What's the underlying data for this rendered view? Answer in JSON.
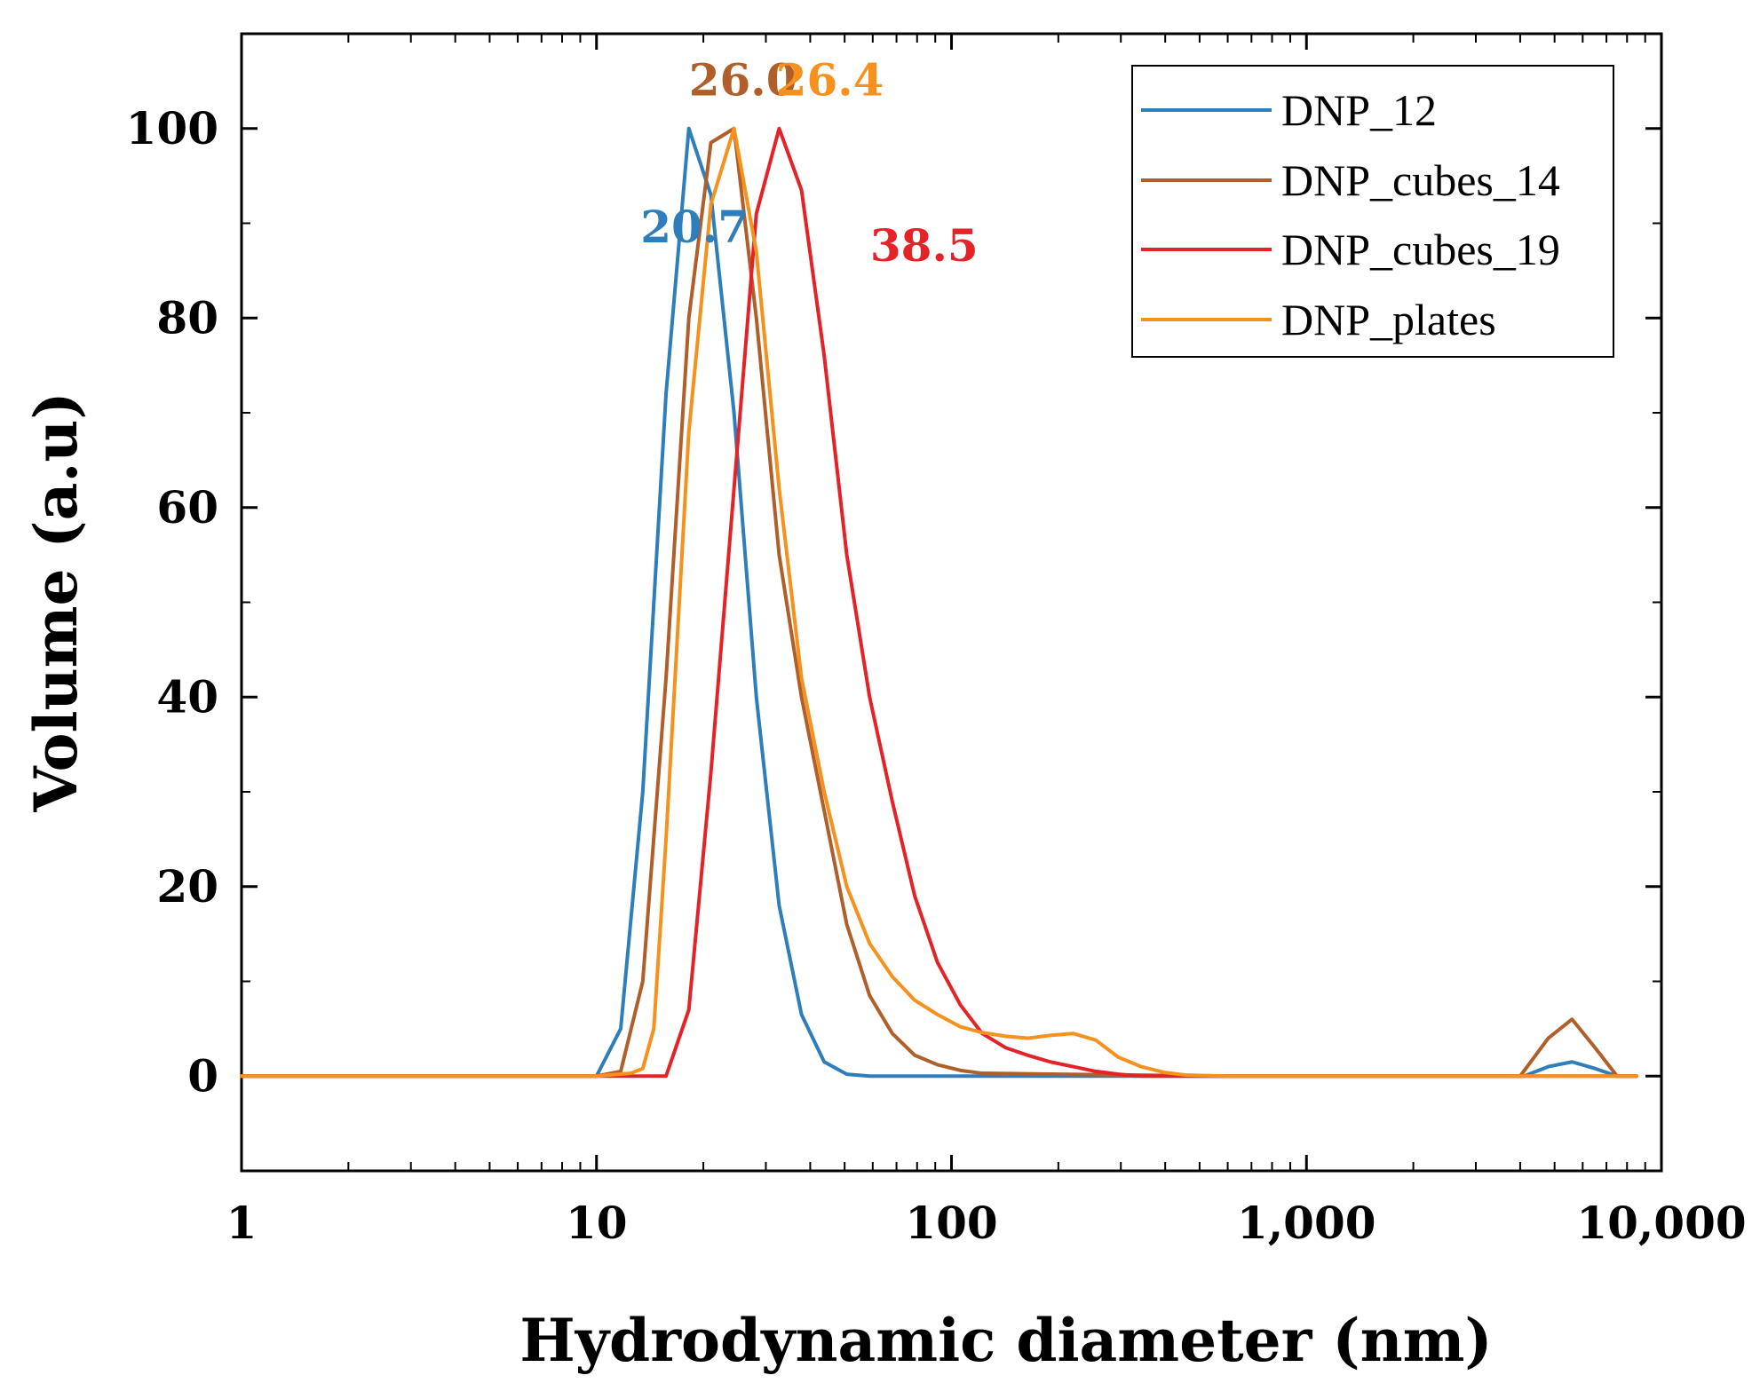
{
  "chart_data": {
    "type": "line",
    "title": "",
    "xlabel": "Hydrodynamic diameter (nm)",
    "ylabel": "Volume (a.u)",
    "xscale": "log",
    "xlim": [
      1,
      10000
    ],
    "ylim": [
      -10,
      110
    ],
    "x_ticks": [
      {
        "value": 1,
        "label": "1"
      },
      {
        "value": 10,
        "label": "10"
      },
      {
        "value": 100,
        "label": "100"
      },
      {
        "value": 1000,
        "label": "1,000"
      },
      {
        "value": 10000,
        "label": "10,000"
      }
    ],
    "y_ticks": [
      {
        "value": 0,
        "label": "0"
      },
      {
        "value": 20,
        "label": "20"
      },
      {
        "value": 40,
        "label": "40"
      },
      {
        "value": 60,
        "label": "60"
      },
      {
        "value": 80,
        "label": "80"
      },
      {
        "value": 100,
        "label": "100"
      }
    ],
    "legend_position": "top-right",
    "series": [
      {
        "name": "DNP_12",
        "color": "#2e7ebc",
        "points": [
          [
            1,
            0
          ],
          [
            10,
            0
          ],
          [
            11.7,
            5
          ],
          [
            13.5,
            30
          ],
          [
            15.7,
            72
          ],
          [
            18.2,
            100
          ],
          [
            21,
            93
          ],
          [
            24.4,
            70
          ],
          [
            28.2,
            40
          ],
          [
            32.7,
            18
          ],
          [
            37.8,
            6.5
          ],
          [
            43.8,
            1.5
          ],
          [
            50.7,
            0.2
          ],
          [
            58.8,
            0
          ],
          [
            100,
            0
          ],
          [
            1000,
            0
          ],
          [
            4100,
            0
          ],
          [
            4800,
            1
          ],
          [
            5600,
            1.5
          ],
          [
            6500,
            0.8
          ],
          [
            7500,
            0
          ],
          [
            8500,
            0
          ]
        ]
      },
      {
        "name": "DNP_cubes_14",
        "color": "#b05e2a",
        "points": [
          [
            1,
            0
          ],
          [
            10,
            0
          ],
          [
            11.7,
            0.5
          ],
          [
            13.5,
            10
          ],
          [
            15.7,
            42
          ],
          [
            18.2,
            80
          ],
          [
            21,
            98.5
          ],
          [
            24.4,
            100
          ],
          [
            28.2,
            80
          ],
          [
            32.7,
            55
          ],
          [
            37.8,
            40
          ],
          [
            43.8,
            28
          ],
          [
            50.7,
            16
          ],
          [
            58.8,
            8.5
          ],
          [
            68.1,
            4.5
          ],
          [
            78.8,
            2.2
          ],
          [
            91.3,
            1.2
          ],
          [
            106,
            0.6
          ],
          [
            122,
            0.3
          ],
          [
            200,
            0.2
          ],
          [
            600,
            0
          ],
          [
            4000,
            0
          ],
          [
            4800,
            4
          ],
          [
            5600,
            6
          ],
          [
            6500,
            3
          ],
          [
            7500,
            0
          ],
          [
            8500,
            0
          ]
        ]
      },
      {
        "name": "DNP_cubes_19",
        "color": "#e32327",
        "points": [
          [
            1,
            0
          ],
          [
            10,
            0
          ],
          [
            15.7,
            0
          ],
          [
            18.2,
            7
          ],
          [
            21,
            32
          ],
          [
            24.4,
            62
          ],
          [
            28.2,
            91
          ],
          [
            32.7,
            100
          ],
          [
            37.8,
            93.5
          ],
          [
            43.8,
            76
          ],
          [
            50.7,
            55
          ],
          [
            58.8,
            40
          ],
          [
            68.1,
            29
          ],
          [
            78.8,
            19
          ],
          [
            91.3,
            12
          ],
          [
            106,
            7.5
          ],
          [
            122,
            4.5
          ],
          [
            142,
            3
          ],
          [
            164,
            2.2
          ],
          [
            190,
            1.5
          ],
          [
            220,
            1
          ],
          [
            255,
            0.5
          ],
          [
            295,
            0.2
          ],
          [
            342,
            0
          ],
          [
            8500,
            0
          ]
        ]
      },
      {
        "name": "DNP_plates",
        "color": "#f7911e",
        "points": [
          [
            1,
            0
          ],
          [
            10,
            0
          ],
          [
            12.5,
            0.3
          ],
          [
            13.5,
            0.8
          ],
          [
            14.5,
            5
          ],
          [
            15.7,
            25
          ],
          [
            18.2,
            68
          ],
          [
            21,
            92
          ],
          [
            24.4,
            100
          ],
          [
            28.2,
            87
          ],
          [
            32.7,
            62
          ],
          [
            37.8,
            42
          ],
          [
            43.8,
            30
          ],
          [
            50.7,
            20
          ],
          [
            58.8,
            14
          ],
          [
            68.1,
            10.5
          ],
          [
            78.8,
            8
          ],
          [
            91.3,
            6.5
          ],
          [
            106,
            5.2
          ],
          [
            122,
            4.6
          ],
          [
            142,
            4.2
          ],
          [
            164,
            4
          ],
          [
            190,
            4.3
          ],
          [
            220,
            4.5
          ],
          [
            255,
            3.8
          ],
          [
            295,
            2
          ],
          [
            342,
            1
          ],
          [
            396,
            0.4
          ],
          [
            459,
            0.1
          ],
          [
            600,
            0
          ],
          [
            8500,
            0
          ]
        ]
      }
    ],
    "annotations": [
      {
        "text": "20.7",
        "series": "DNP_12",
        "color": "#2e7ebc",
        "x": 13.3,
        "y": 88
      },
      {
        "text": "26.0",
        "series": "DNP_cubes_14",
        "color": "#b05e2a",
        "x": 18.2,
        "y": 103.5
      },
      {
        "text": "26.4",
        "series": "DNP_plates",
        "color": "#f7911e",
        "x": 32,
        "y": 103.5
      },
      {
        "text": "38.5",
        "series": "DNP_cubes_19",
        "color": "#e32327",
        "x": 59,
        "y": 86
      }
    ]
  }
}
